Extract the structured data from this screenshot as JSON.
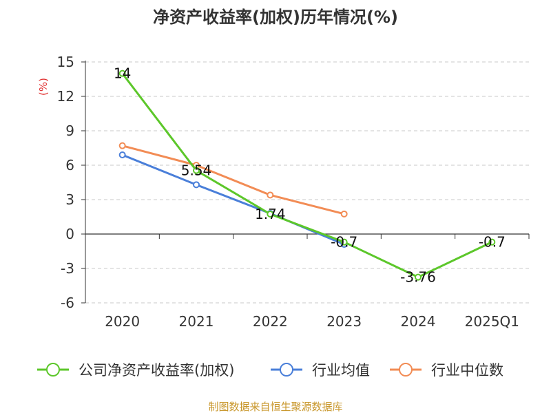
{
  "chart_data": {
    "type": "line",
    "title": "净资产收益率(加权)历年情况(%)",
    "ylabel": "(%)",
    "categories": [
      "2020",
      "2021",
      "2022",
      "2023",
      "2024",
      "2025Q1"
    ],
    "yticks": [
      "15",
      "12",
      "9",
      "6",
      "3",
      "0",
      "-3",
      "-6"
    ],
    "ylim": [
      -6,
      15
    ],
    "grid": true,
    "legend_position": "bottom",
    "series": [
      {
        "name": "公司净资产收益率(加权)",
        "color": "#5cc72a",
        "values": [
          14,
          5.54,
          1.74,
          -0.7,
          -3.76,
          -0.7
        ],
        "labels": [
          "14",
          "5.54",
          "1.74",
          "-0.7",
          "-3.76",
          "-0.7"
        ]
      },
      {
        "name": "行业均值",
        "color": "#4a7fd9",
        "values": [
          6.9,
          4.3,
          1.8,
          -0.9,
          null,
          null
        ]
      },
      {
        "name": "行业中位数",
        "color": "#f28c55",
        "values": [
          7.7,
          6.0,
          3.4,
          1.75,
          null,
          null
        ]
      }
    ],
    "source": "制图数据来自恒生聚源数据库"
  }
}
